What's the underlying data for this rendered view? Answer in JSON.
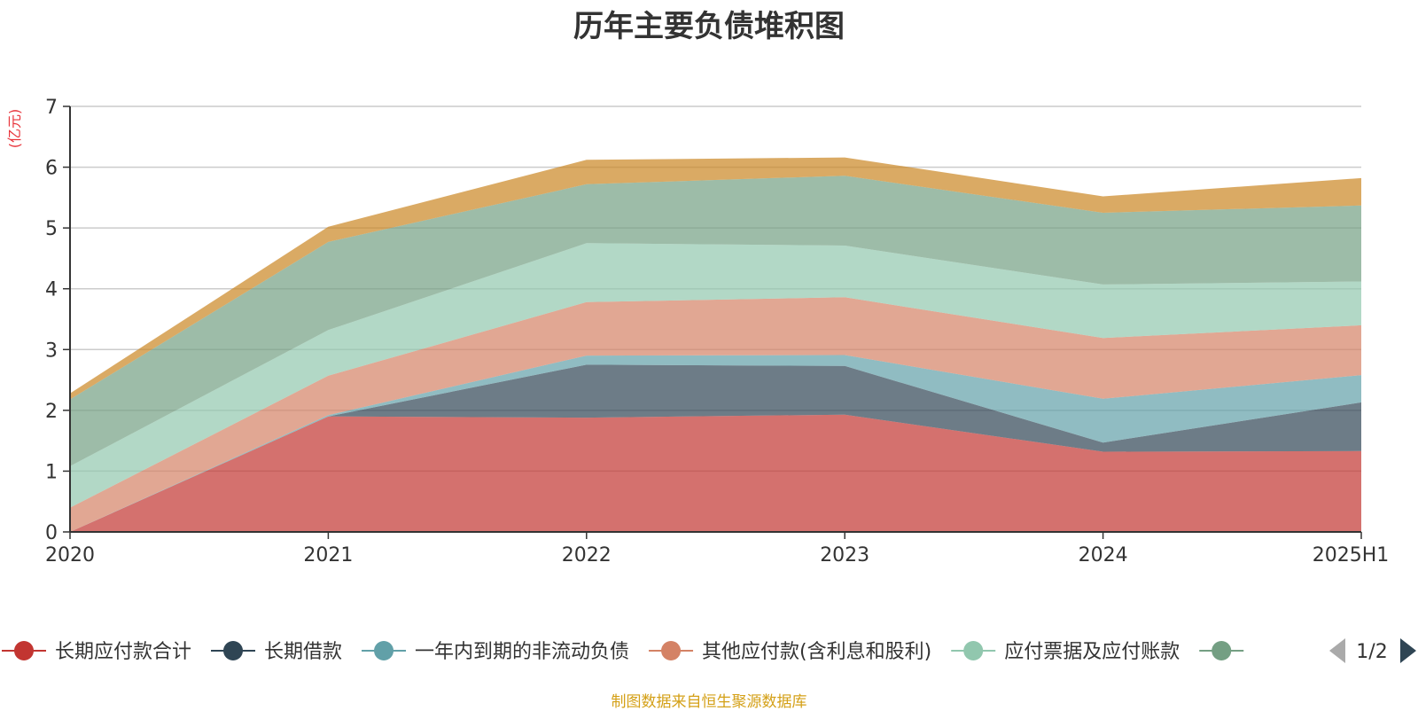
{
  "colors": {
    "title": "#333333",
    "unit": "#e8333a",
    "source": "#d4a017",
    "grid": "#cccccc",
    "axis": "#333333"
  },
  "source_note": "制图数据来自恒生聚源数据库",
  "legend_pager": {
    "label": "1/2",
    "prev_icon": "triangle-left-icon",
    "next_icon": "triangle-right-icon"
  },
  "chart_data": {
    "type": "area",
    "stacked": true,
    "title": "历年主要负债堆积图",
    "ylabel": "(亿元)",
    "xlabel": "",
    "categories": [
      "2020",
      "2021",
      "2022",
      "2023",
      "2024",
      "2025H1"
    ],
    "ylim": [
      0,
      7
    ],
    "yticks": [
      0,
      1,
      2,
      3,
      4,
      5,
      6,
      7
    ],
    "grid": true,
    "legend_position": "bottom",
    "series": [
      {
        "name": "长期应付款合计",
        "color": "#c23531",
        "values": [
          0.0,
          1.9,
          1.88,
          1.93,
          1.32,
          1.33
        ],
        "in_legend": true
      },
      {
        "name": "长期借款",
        "color": "#2f4554",
        "values": [
          0.0,
          0.0,
          0.87,
          0.8,
          0.15,
          0.8
        ],
        "in_legend": true
      },
      {
        "name": "一年内到期的非流动负债",
        "color": "#61a0a8",
        "values": [
          0.0,
          0.02,
          0.15,
          0.18,
          0.72,
          0.45
        ],
        "in_legend": true
      },
      {
        "name": "其他应付款(含利息和股利)",
        "color": "#d48265",
        "values": [
          0.4,
          0.65,
          0.88,
          0.95,
          1.0,
          0.82
        ],
        "in_legend": true
      },
      {
        "name": "应付票据及应付账款",
        "color": "#91c7ae",
        "values": [
          0.68,
          0.75,
          0.97,
          0.85,
          0.88,
          0.72
        ],
        "in_legend": true
      },
      {
        "name": "",
        "color": "#749f83",
        "values": [
          1.1,
          1.45,
          0.97,
          1.15,
          1.18,
          1.25
        ],
        "in_legend": true
      },
      {
        "name": "",
        "color": "#ca8622",
        "values": [
          0.1,
          0.25,
          0.4,
          0.3,
          0.27,
          0.45
        ],
        "in_legend": false
      }
    ]
  }
}
